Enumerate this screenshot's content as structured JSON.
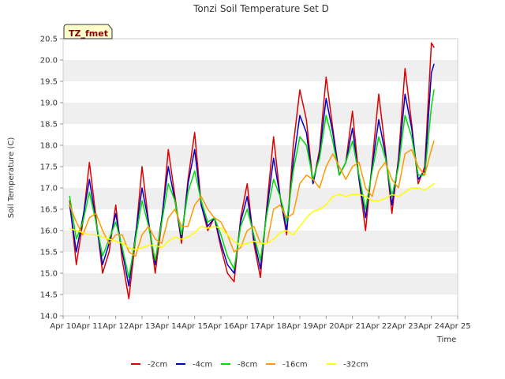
{
  "chart_data": {
    "type": "line",
    "title": "Tonzi Soil Temperature Set D",
    "xlabel": "Time",
    "ylabel": "Soil Temperature (C)",
    "badge": "TZ_fmet",
    "xlim": [
      10,
      25
    ],
    "ylim": [
      14.0,
      20.5
    ],
    "grid": "horizontal bands",
    "legend_position": "bottom",
    "x_ticks": [
      10,
      11,
      12,
      13,
      14,
      15,
      16,
      17,
      18,
      19,
      20,
      21,
      22,
      23,
      24,
      25
    ],
    "x_tick_labels": [
      "Apr 10",
      "Apr 11",
      "Apr 12",
      "Apr 13",
      "Apr 14",
      "Apr 15",
      "Apr 16",
      "Apr 17",
      "Apr 18",
      "Apr 19",
      "Apr 20",
      "Apr 21",
      "Apr 22",
      "Apr 23",
      "Apr 24",
      "Apr 25"
    ],
    "y_ticks": [
      14.0,
      14.5,
      15.0,
      15.5,
      16.0,
      16.5,
      17.0,
      17.5,
      18.0,
      18.5,
      19.0,
      19.5,
      20.0,
      20.5
    ],
    "y_tick_labels": [
      "14.0",
      "14.5",
      "15.0",
      "15.5",
      "16.0",
      "16.5",
      "17.0",
      "17.5",
      "18.0",
      "18.5",
      "19.0",
      "19.5",
      "20.0",
      "20.5"
    ],
    "series": [
      {
        "name": "-2cm",
        "color": "#dd0000",
        "x": [
          10.25,
          10.5,
          10.75,
          11.0,
          11.25,
          11.5,
          11.75,
          12.0,
          12.25,
          12.5,
          12.75,
          13.0,
          13.25,
          13.5,
          13.75,
          14.0,
          14.25,
          14.5,
          14.75,
          15.0,
          15.25,
          15.5,
          15.75,
          16.0,
          16.25,
          16.5,
          16.75,
          17.0,
          17.25,
          17.5,
          17.75,
          18.0,
          18.25,
          18.5,
          18.75,
          19.0,
          19.25,
          19.5,
          19.75,
          20.0,
          20.25,
          20.5,
          20.75,
          21.0,
          21.25,
          21.5,
          21.75,
          22.0,
          22.25,
          22.5,
          22.75,
          23.0,
          23.25,
          23.5,
          23.75,
          24.0,
          24.1
        ],
        "y": [
          16.7,
          15.2,
          16.2,
          17.6,
          16.3,
          15.0,
          15.5,
          16.6,
          15.3,
          14.4,
          15.8,
          17.5,
          16.2,
          15.0,
          16.2,
          17.9,
          16.8,
          15.7,
          17.2,
          18.3,
          16.6,
          16.0,
          16.3,
          15.6,
          15.0,
          14.8,
          16.3,
          17.1,
          15.7,
          14.9,
          16.6,
          18.2,
          16.8,
          15.9,
          18.0,
          19.3,
          18.6,
          17.1,
          17.9,
          19.6,
          18.4,
          17.3,
          17.6,
          18.8,
          17.2,
          16.0,
          17.6,
          19.2,
          17.9,
          16.4,
          17.7,
          19.8,
          18.5,
          17.1,
          17.5,
          20.4,
          20.3
        ]
      },
      {
        "name": "-4cm",
        "color": "#0000cc",
        "x": [
          10.25,
          10.5,
          10.75,
          11.0,
          11.25,
          11.5,
          11.75,
          12.0,
          12.25,
          12.5,
          12.75,
          13.0,
          13.25,
          13.5,
          13.75,
          14.0,
          14.25,
          14.5,
          14.75,
          15.0,
          15.25,
          15.5,
          15.75,
          16.0,
          16.25,
          16.5,
          16.75,
          17.0,
          17.25,
          17.5,
          17.75,
          18.0,
          18.25,
          18.5,
          18.75,
          19.0,
          19.25,
          19.5,
          19.75,
          20.0,
          20.25,
          20.5,
          20.75,
          21.0,
          21.25,
          21.5,
          21.75,
          22.0,
          22.25,
          22.5,
          22.75,
          23.0,
          23.25,
          23.5,
          23.75,
          24.0,
          24.1
        ],
        "y": [
          16.6,
          15.5,
          16.3,
          17.2,
          16.2,
          15.2,
          15.7,
          16.4,
          15.5,
          14.7,
          15.9,
          17.0,
          16.2,
          15.2,
          16.3,
          17.5,
          16.7,
          15.8,
          17.1,
          17.9,
          16.6,
          16.1,
          16.3,
          15.7,
          15.2,
          15.0,
          16.2,
          16.8,
          15.8,
          15.1,
          16.5,
          17.7,
          16.8,
          16.0,
          17.6,
          18.7,
          18.3,
          17.1,
          17.8,
          19.1,
          18.3,
          17.3,
          17.6,
          18.4,
          17.2,
          16.3,
          17.5,
          18.6,
          17.8,
          16.6,
          17.6,
          19.2,
          18.4,
          17.2,
          17.4,
          19.7,
          19.9
        ]
      },
      {
        "name": "-8cm",
        "color": "#00dd00",
        "x": [
          10.25,
          10.5,
          10.75,
          11.0,
          11.25,
          11.5,
          11.75,
          12.0,
          12.25,
          12.5,
          12.75,
          13.0,
          13.25,
          13.5,
          13.75,
          14.0,
          14.25,
          14.5,
          14.75,
          15.0,
          15.25,
          15.5,
          15.75,
          16.0,
          16.25,
          16.5,
          16.75,
          17.0,
          17.25,
          17.5,
          17.75,
          18.0,
          18.25,
          18.5,
          18.75,
          19.0,
          19.25,
          19.5,
          19.75,
          20.0,
          20.25,
          20.5,
          20.75,
          21.0,
          21.25,
          21.5,
          21.75,
          22.0,
          22.25,
          22.5,
          22.75,
          23.0,
          23.25,
          23.5,
          23.75,
          24.0,
          24.1
        ],
        "y": [
          16.8,
          15.8,
          16.2,
          16.9,
          16.2,
          15.4,
          15.8,
          16.2,
          15.6,
          14.9,
          15.8,
          16.7,
          16.1,
          15.3,
          16.2,
          17.1,
          16.7,
          15.9,
          16.9,
          17.4,
          16.7,
          16.2,
          16.3,
          15.9,
          15.4,
          15.1,
          16.1,
          16.5,
          15.9,
          15.3,
          16.4,
          17.2,
          16.8,
          16.2,
          17.4,
          18.2,
          18.0,
          17.2,
          17.7,
          18.7,
          18.1,
          17.3,
          17.6,
          18.1,
          17.3,
          16.5,
          17.4,
          18.2,
          17.7,
          16.8,
          17.5,
          18.7,
          18.2,
          17.3,
          17.3,
          18.9,
          19.3
        ]
      },
      {
        "name": "-16cm",
        "color": "#ff9900",
        "x": [
          10.25,
          10.5,
          10.75,
          11.0,
          11.25,
          11.5,
          11.75,
          12.0,
          12.25,
          12.5,
          12.75,
          13.0,
          13.25,
          13.5,
          13.75,
          14.0,
          14.25,
          14.5,
          14.75,
          15.0,
          15.25,
          15.5,
          15.75,
          16.0,
          16.25,
          16.5,
          16.75,
          17.0,
          17.25,
          17.5,
          17.75,
          18.0,
          18.25,
          18.5,
          18.75,
          19.0,
          19.25,
          19.5,
          19.75,
          20.0,
          20.25,
          20.5,
          20.75,
          21.0,
          21.25,
          21.5,
          21.75,
          22.0,
          22.25,
          22.5,
          22.75,
          23.0,
          23.25,
          23.5,
          23.75,
          24.0,
          24.1
        ],
        "y": [
          16.6,
          16.2,
          15.9,
          16.3,
          16.4,
          16.0,
          15.7,
          15.9,
          15.9,
          15.5,
          15.4,
          15.9,
          16.1,
          15.8,
          15.7,
          16.3,
          16.5,
          16.1,
          16.1,
          16.6,
          16.8,
          16.5,
          16.3,
          16.2,
          15.9,
          15.5,
          15.6,
          16.0,
          16.1,
          15.7,
          15.7,
          16.5,
          16.6,
          16.3,
          16.4,
          17.1,
          17.3,
          17.2,
          17.0,
          17.5,
          17.8,
          17.5,
          17.2,
          17.5,
          17.6,
          17.0,
          16.8,
          17.4,
          17.6,
          17.2,
          17.0,
          17.8,
          17.9,
          17.5,
          17.3,
          17.9,
          18.1
        ]
      },
      {
        "name": "-32cm",
        "color": "#ffff00",
        "x": [
          10.25,
          10.5,
          10.75,
          11.0,
          11.25,
          11.5,
          11.75,
          12.0,
          12.25,
          12.5,
          12.75,
          13.0,
          13.25,
          13.5,
          13.75,
          14.0,
          14.25,
          14.5,
          14.75,
          15.0,
          15.25,
          15.5,
          15.75,
          16.0,
          16.25,
          16.5,
          16.75,
          17.0,
          17.25,
          17.5,
          17.75,
          18.0,
          18.25,
          18.5,
          18.75,
          19.0,
          19.25,
          19.5,
          19.75,
          20.0,
          20.25,
          20.5,
          20.75,
          21.0,
          21.25,
          21.5,
          21.75,
          22.0,
          22.25,
          22.5,
          22.75,
          23.0,
          23.25,
          23.5,
          23.75,
          24.0,
          24.1
        ],
        "y": [
          16.05,
          16.0,
          15.95,
          15.9,
          15.9,
          15.85,
          15.8,
          15.75,
          15.7,
          15.6,
          15.55,
          15.6,
          15.65,
          15.65,
          15.6,
          15.75,
          15.85,
          15.8,
          15.85,
          15.95,
          16.1,
          16.05,
          16.1,
          16.05,
          15.9,
          15.75,
          15.65,
          15.7,
          15.75,
          15.7,
          15.7,
          15.8,
          15.95,
          16.0,
          15.9,
          16.1,
          16.3,
          16.45,
          16.5,
          16.6,
          16.8,
          16.85,
          16.8,
          16.85,
          16.85,
          16.8,
          16.7,
          16.7,
          16.75,
          16.85,
          16.8,
          16.9,
          17.0,
          17.0,
          16.95,
          17.05,
          17.1
        ]
      }
    ]
  }
}
